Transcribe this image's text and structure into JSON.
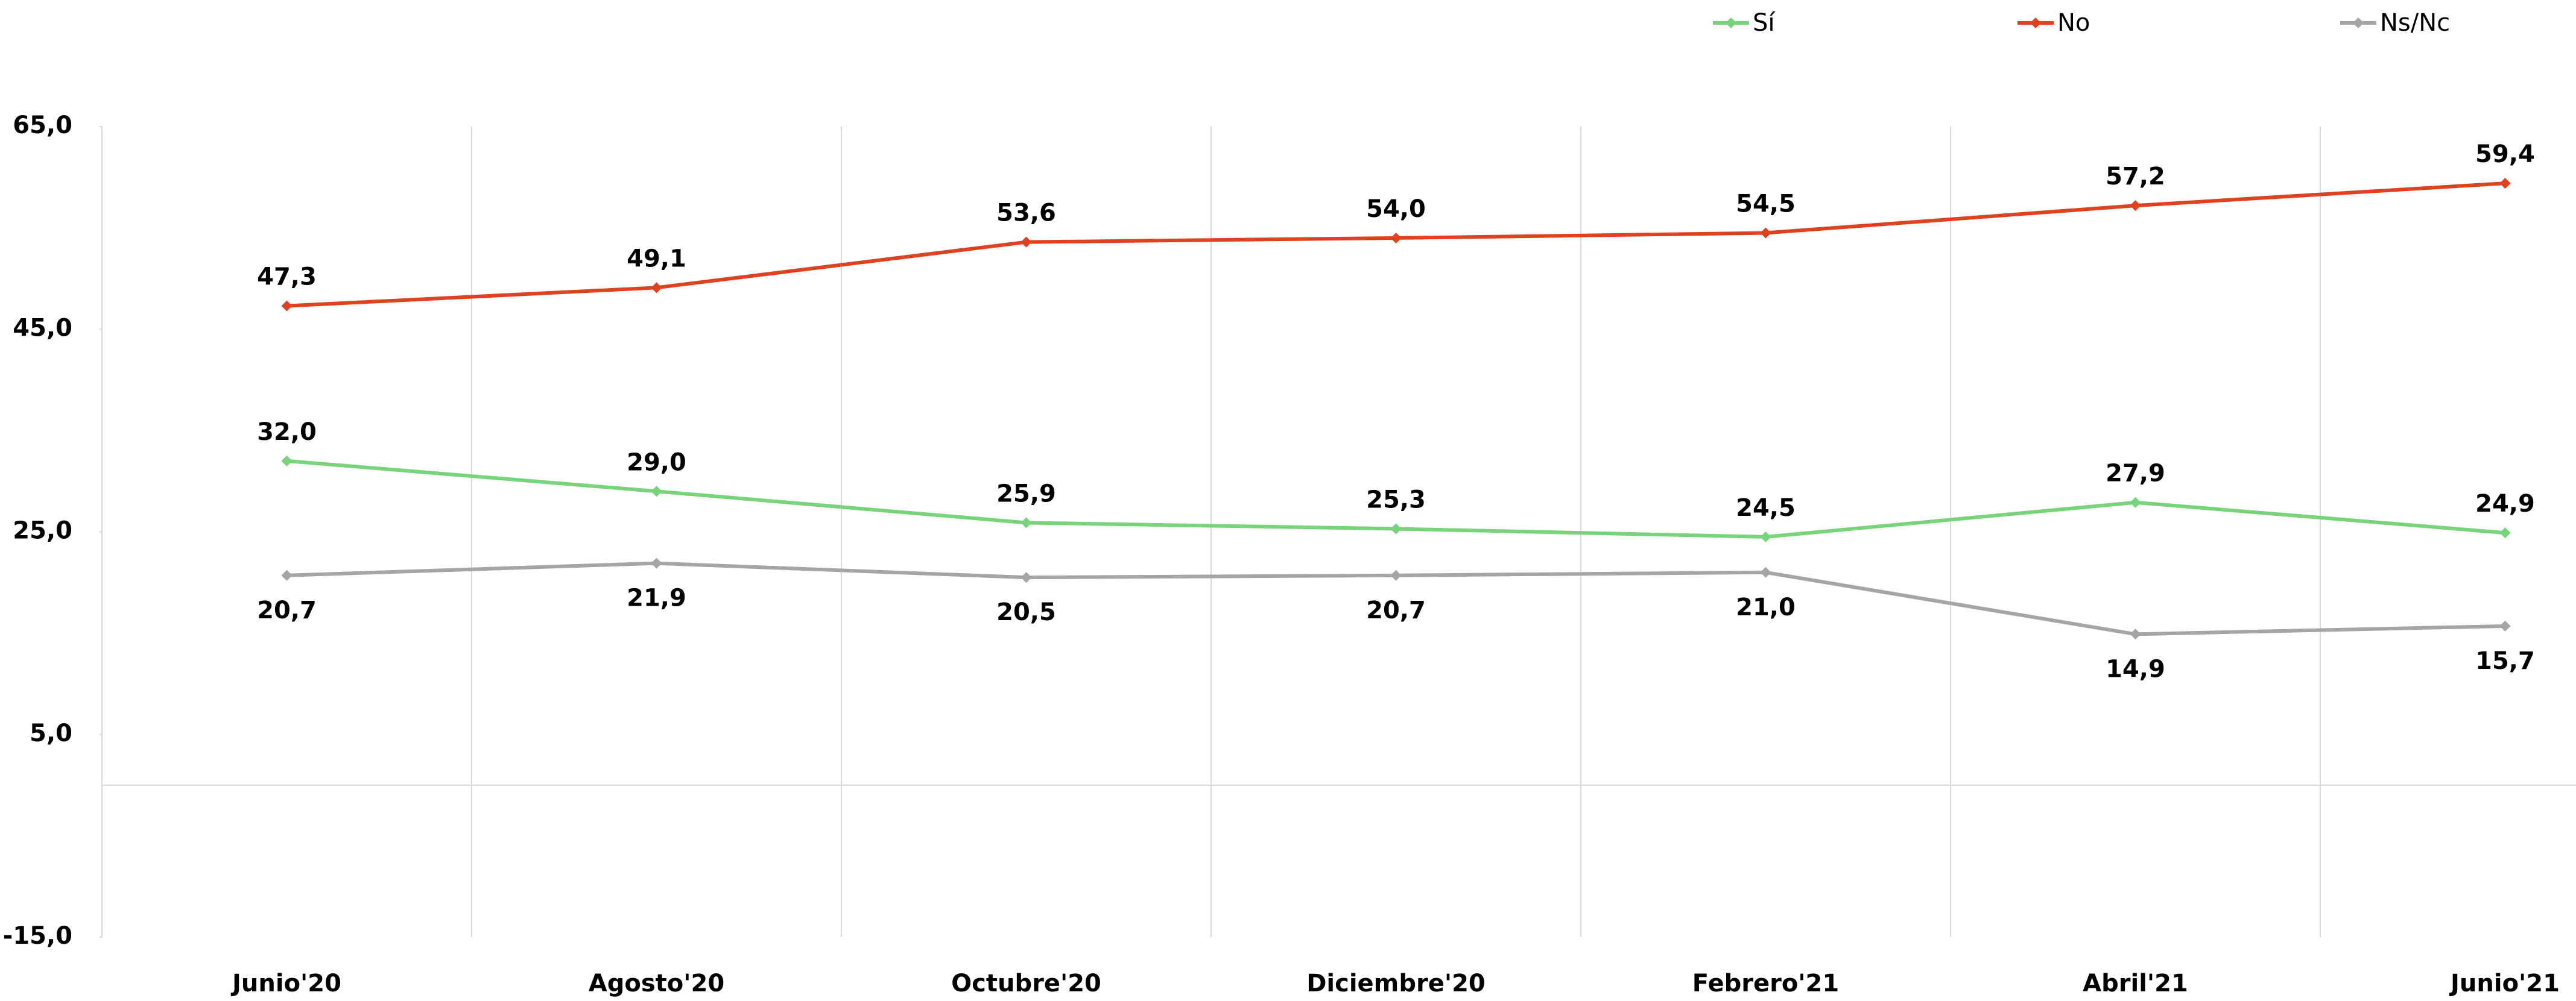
{
  "chart_data": {
    "type": "line",
    "categories": [
      "Junio'20",
      "Agosto'20",
      "Octubre'20",
      "Diciembre'20",
      "Febrero'21",
      "Abril'21",
      "Junio'21"
    ],
    "series": [
      {
        "name": "Sí",
        "color": "#77d47a",
        "values": [
          32.0,
          29.0,
          25.9,
          25.3,
          24.5,
          27.9,
          24.9
        ],
        "value_labels": [
          "32,0",
          "29,0",
          "25,9",
          "25,3",
          "24,5",
          "27,9",
          "24,9"
        ]
      },
      {
        "name": "No",
        "color": "#e0411f",
        "values": [
          47.3,
          49.1,
          53.6,
          54.0,
          54.5,
          57.2,
          59.4
        ],
        "value_labels": [
          "47,3",
          "49,1",
          "53,6",
          "54,0",
          "54,5",
          "57,2",
          "59,4"
        ]
      },
      {
        "name": "Ns/Nc",
        "color": "#a5a5a5",
        "values": [
          20.7,
          21.9,
          20.5,
          20.7,
          21.0,
          14.9,
          15.7
        ],
        "value_labels": [
          "20,7",
          "21,9",
          "20,5",
          "20,7",
          "21,0",
          "14,9",
          "15,7"
        ]
      }
    ],
    "ylim": [
      -15,
      65
    ],
    "yticks": [
      {
        "value": -15,
        "label": "-15,0"
      },
      {
        "value": 5,
        "label": "5,0"
      },
      {
        "value": 25,
        "label": "25,0"
      },
      {
        "value": 45,
        "label": "45,0"
      },
      {
        "value": 65,
        "label": "65,0"
      }
    ],
    "grid": true,
    "legend": "top"
  }
}
